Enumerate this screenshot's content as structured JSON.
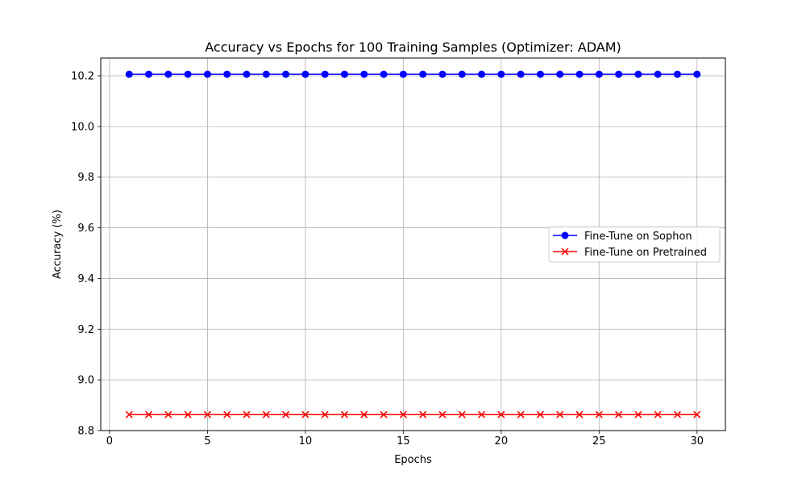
{
  "chart_data": {
    "type": "line",
    "title": "Accuracy vs Epochs for 100 Training Samples (Optimizer: ADAM)",
    "xlabel": "Epochs",
    "ylabel": "Accuracy (%)",
    "xlim": [
      -0.45,
      31.45
    ],
    "ylim": [
      8.8,
      10.27
    ],
    "xticks": [
      0,
      5,
      10,
      15,
      20,
      25,
      30
    ],
    "yticks": [
      8.8,
      9.0,
      9.2,
      9.4,
      9.6,
      9.8,
      10.0,
      10.2
    ],
    "ytick_labels": [
      "8.8",
      "9.0",
      "9.2",
      "9.4",
      "9.6",
      "9.8",
      "10.0",
      "10.2"
    ],
    "grid": true,
    "legend_position": "center-right",
    "x": [
      1,
      2,
      3,
      4,
      5,
      6,
      7,
      8,
      9,
      10,
      11,
      12,
      13,
      14,
      15,
      16,
      17,
      18,
      19,
      20,
      21,
      22,
      23,
      24,
      25,
      26,
      27,
      28,
      29,
      30
    ],
    "series": [
      {
        "name": "Fine-Tune on Sophon",
        "color": "#0000ff",
        "marker": "circle",
        "values": [
          10.206,
          10.206,
          10.206,
          10.206,
          10.206,
          10.206,
          10.206,
          10.206,
          10.206,
          10.206,
          10.206,
          10.206,
          10.206,
          10.206,
          10.206,
          10.206,
          10.206,
          10.206,
          10.206,
          10.206,
          10.206,
          10.206,
          10.206,
          10.206,
          10.206,
          10.206,
          10.206,
          10.206,
          10.206,
          10.206
        ]
      },
      {
        "name": "Fine-Tune on Pretrained",
        "color": "#ff0000",
        "marker": "x",
        "values": [
          8.863,
          8.863,
          8.863,
          8.863,
          8.863,
          8.863,
          8.863,
          8.863,
          8.863,
          8.863,
          8.863,
          8.863,
          8.863,
          8.863,
          8.863,
          8.863,
          8.863,
          8.863,
          8.863,
          8.863,
          8.863,
          8.863,
          8.863,
          8.863,
          8.863,
          8.863,
          8.863,
          8.863,
          8.863,
          8.863
        ]
      }
    ]
  }
}
